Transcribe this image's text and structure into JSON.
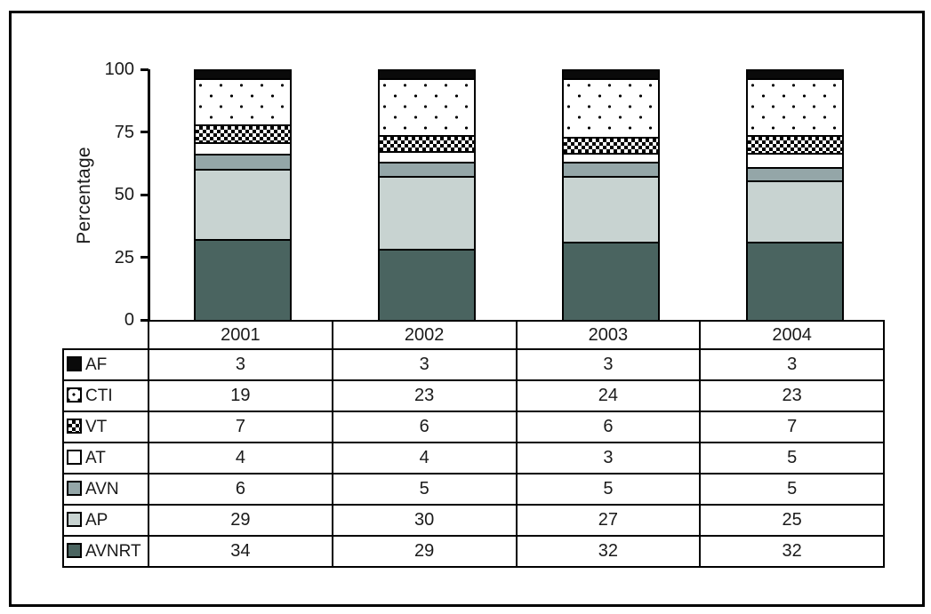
{
  "chart_data": {
    "type": "bar",
    "stacked": true,
    "title": "",
    "xlabel": "",
    "ylabel": "Percentage",
    "ylim": [
      0,
      100
    ],
    "yticks": [
      0,
      25,
      50,
      75,
      100
    ],
    "grid": false,
    "legend_position": "table-left-column",
    "categories": [
      "2001",
      "2002",
      "2003",
      "2004"
    ],
    "series": [
      {
        "name": "AF",
        "values": [
          3,
          3,
          3,
          3
        ],
        "style": "black",
        "color": "#0a0a0a",
        "swatch": "solid-black-square"
      },
      {
        "name": "CTI",
        "values": [
          19,
          23,
          24,
          23
        ],
        "style": "dots",
        "color": "#ffffff",
        "swatch": "white-with-black-dots"
      },
      {
        "name": "VT",
        "values": [
          7,
          6,
          6,
          7
        ],
        "style": "checker",
        "color": "#ffffff",
        "swatch": "black-white-checkerboard"
      },
      {
        "name": "AT",
        "values": [
          4,
          4,
          3,
          5
        ],
        "style": "white",
        "color": "#ffffff",
        "swatch": "white-square"
      },
      {
        "name": "AVN",
        "values": [
          6,
          5,
          5,
          5
        ],
        "style": "plain",
        "color": "#94a6a8",
        "swatch": "medium-gray-square"
      },
      {
        "name": "AP",
        "values": [
          29,
          30,
          27,
          25
        ],
        "style": "plain",
        "color": "#c8d3d1",
        "swatch": "light-gray-square"
      },
      {
        "name": "AVNRT",
        "values": [
          34,
          29,
          32,
          32
        ],
        "style": "plain",
        "color": "#4a6460",
        "swatch": "dark-gray-square"
      }
    ]
  }
}
